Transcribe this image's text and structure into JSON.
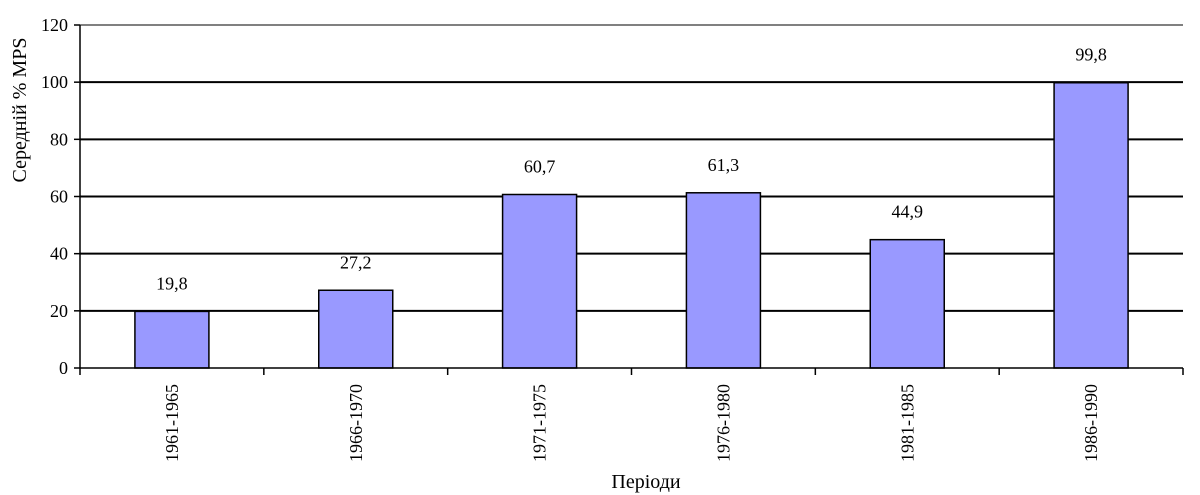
{
  "chart_data": {
    "type": "bar",
    "title": "",
    "xlabel": "Періоди",
    "ylabel": "Середній % MPS",
    "categories": [
      "1961-1965",
      "1966-1970",
      "1971-1975",
      "1976-1980",
      "1981-1985",
      "1986-1990"
    ],
    "values": [
      19.8,
      27.2,
      60.7,
      61.3,
      44.9,
      99.8
    ],
    "value_labels": [
      "19,8",
      "27,2",
      "60,7",
      "61,3",
      "44,9",
      "99,8"
    ],
    "ylim": [
      0,
      120
    ],
    "yticks": [
      0,
      20,
      40,
      60,
      80,
      100,
      120
    ],
    "grid": true,
    "legend": "none",
    "colors": {
      "bar_fill": "#9999ff",
      "bar_stroke": "#000000",
      "grid": "#000000",
      "background": "#ffffff"
    }
  }
}
